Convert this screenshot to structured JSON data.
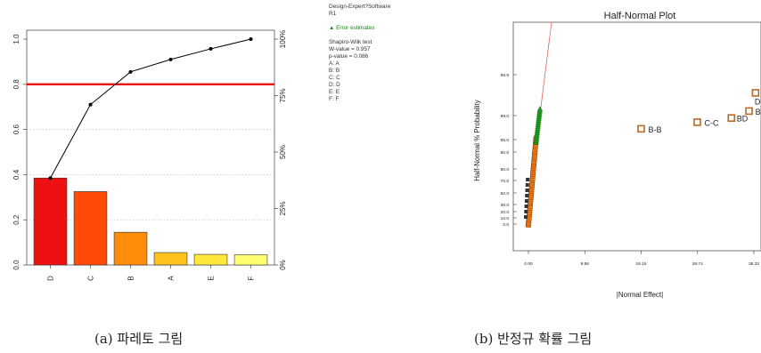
{
  "chart_data": [
    {
      "type": "bar",
      "categories": [
        "D",
        "C",
        "B",
        "A",
        "E",
        "F"
      ],
      "values": [
        0.385,
        0.325,
        0.145,
        0.055,
        0.047,
        0.045
      ],
      "cumulative": [
        0.385,
        0.71,
        0.855,
        0.91,
        0.957,
        1.0
      ],
      "reference_line": 0.8,
      "ylim": [
        0,
        1.0
      ],
      "y_ticks": [
        "0.0",
        "0.2",
        "0.4",
        "0.6",
        "0.8",
        "1.0"
      ],
      "y2_ticks": [
        "0%",
        "25%",
        "50%",
        "75%",
        "100%"
      ],
      "bar_colors": [
        "#ee1111",
        "#ff4a0a",
        "#ff8c0a",
        "#ffc21a",
        "#ffe83a",
        "#ffff70"
      ],
      "reference_color": "#e81010"
    },
    {
      "type": "scatter",
      "title": "Half-Normal Plot",
      "xlabel": "|Normal Effect|",
      "ylabel": "Half-Normal % Probability",
      "x_ticks": [
        "0.00",
        "9.58",
        "19.16",
        "28.74",
        "38.32"
      ],
      "y_ticks": [
        "0.0",
        "10.0",
        "20.0",
        "30.0",
        "50.0",
        "70.0",
        "80.0",
        "90.0",
        "95.0",
        "99.0",
        "99.9"
      ],
      "labeled_points": [
        {
          "label": "B-B",
          "x": 19.16,
          "y": 96.8
        },
        {
          "label": "C-C",
          "x": 28.7,
          "y": 97.9
        },
        {
          "label": "BD",
          "x": 34.5,
          "y": 98.6
        },
        {
          "label": "D",
          "x": 38.6,
          "y": 99.5
        },
        {
          "label": "B",
          "x": 37.5,
          "y": 99.1
        }
      ]
    }
  ],
  "info_panel": {
    "lines": [
      "Design-Expert?Software",
      "R1"
    ],
    "error_label": "▲ Error estimates",
    "test_lines": [
      "Shapiro-Wilk test",
      "W-value = 0.957",
      "p-value = 0.086",
      "A: A",
      "B: B",
      "C: C",
      "D: D",
      "E: E",
      "F: F"
    ]
  },
  "captions": {
    "a": "(a) 파레토 그림",
    "b": "(b) 반정규 확률 그림"
  }
}
